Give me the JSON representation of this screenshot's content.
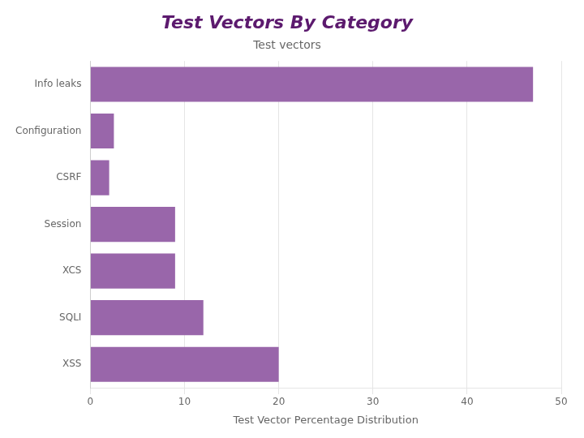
{
  "chart_data": {
    "type": "bar",
    "orientation": "horizontal",
    "title": "Test Vectors By Category",
    "subtitle": "Test vectors",
    "xlabel": "Test Vector Percentage Distribution",
    "categories": [
      "Info leaks",
      "Configuration",
      "CSRF",
      "Session",
      "XCS",
      "SQLI",
      "XSS"
    ],
    "values": [
      47,
      2.5,
      2,
      9,
      9,
      12,
      20
    ],
    "color": "#9966aa",
    "xlim": [
      0,
      50
    ],
    "xticks": [
      0,
      10,
      20,
      30,
      40,
      50
    ],
    "grid": true
  }
}
